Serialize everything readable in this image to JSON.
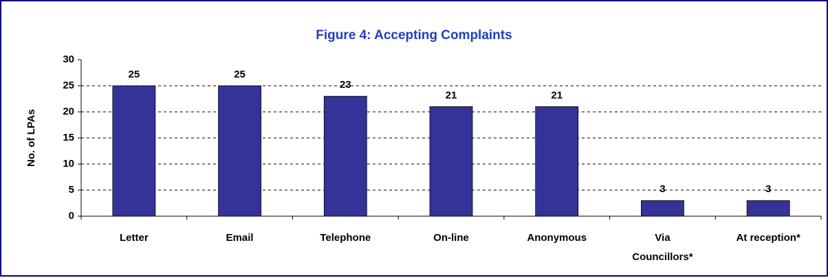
{
  "chart_data": {
    "type": "bar",
    "title": "Figure 4: Accepting Complaints",
    "ylabel": "No. of LPAs",
    "categories": [
      "Letter",
      "Email",
      "Telephone",
      "On-line",
      "Anonymous",
      "Via Councillors*",
      "At reception*"
    ],
    "values": [
      25,
      25,
      23,
      21,
      21,
      3,
      3
    ],
    "color": "#333399",
    "ylim": [
      0,
      30
    ],
    "yticks": [
      0,
      5,
      10,
      15,
      20,
      25,
      30
    ],
    "grid": true
  }
}
